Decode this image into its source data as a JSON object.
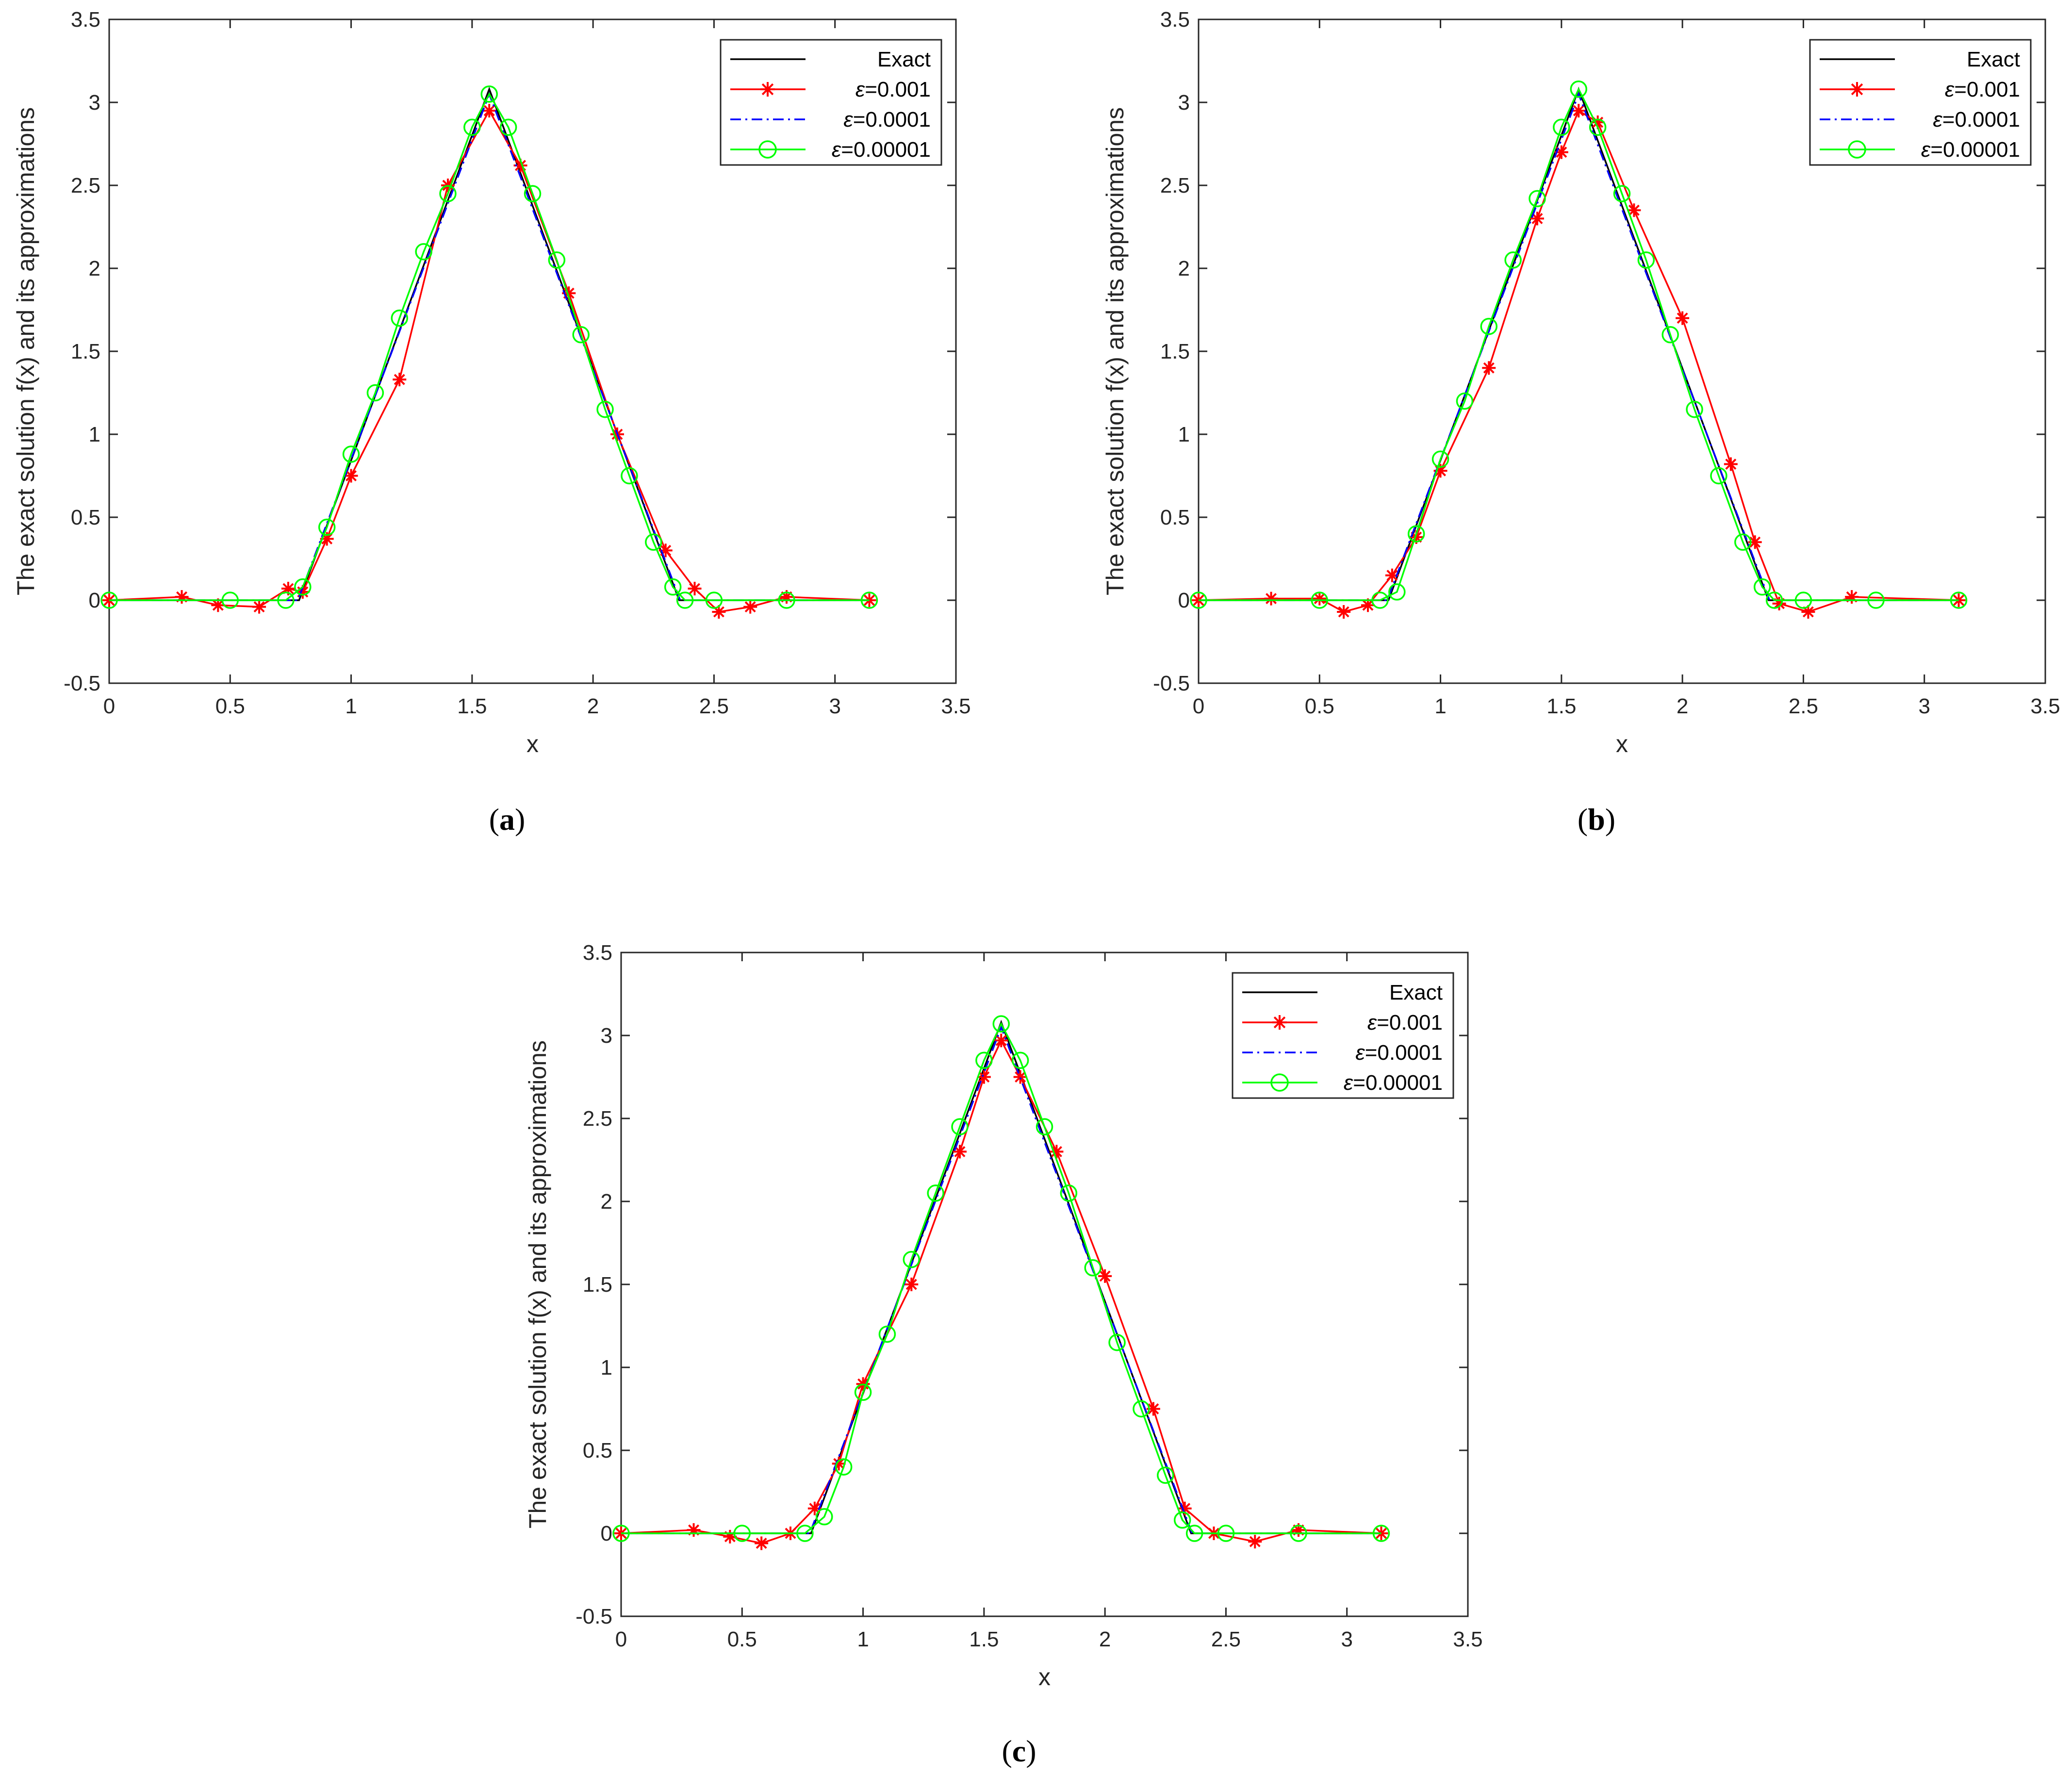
{
  "figure": {
    "colors": {
      "exact": "#000000",
      "eps1": "#ff0000",
      "eps2": "#0000ff",
      "eps3": "#00ff00",
      "axis": "#262626"
    }
  },
  "chart_data": [
    {
      "type": "line",
      "panel": "a",
      "caption": {
        "open": "(",
        "letter": "a",
        "close": ")"
      },
      "xlabel": "x",
      "ylabel": "The exact solution f(x) and its approximations",
      "xlim": [
        0,
        3.5
      ],
      "ylim": [
        -0.5,
        3.5
      ],
      "xticks": [
        "0",
        "0.5",
        "1",
        "1.5",
        "2",
        "2.5",
        "3",
        "3.5"
      ],
      "yticks": [
        "-0.5",
        "0",
        "0.5",
        "1",
        "1.5",
        "2",
        "2.5",
        "3",
        "3.5"
      ],
      "legend_position": "top-right",
      "series": [
        {
          "name": "Exact",
          "label_prefix": "",
          "label_value": "Exact",
          "style": "solid",
          "marker": "none",
          "color": "#000000",
          "x": [
            0,
            0.785,
            1.571,
            2.356,
            3.142
          ],
          "y": [
            0,
            0,
            3.08,
            0,
            0
          ]
        },
        {
          "name": "ε=0.001",
          "label_prefix": "ε",
          "label_value": "=0.001",
          "style": "solid",
          "marker": "star",
          "color": "#ff0000",
          "x": [
            0,
            0.3,
            0.45,
            0.62,
            0.74,
            0.8,
            0.9,
            1.0,
            1.2,
            1.4,
            1.571,
            1.7,
            1.9,
            2.1,
            2.3,
            2.42,
            2.52,
            2.65,
            2.8,
            3.142
          ],
          "y": [
            0,
            0.02,
            -0.03,
            -0.04,
            0.07,
            0.05,
            0.37,
            0.75,
            1.33,
            2.5,
            2.95,
            2.62,
            1.85,
            1.0,
            0.3,
            0.07,
            -0.07,
            -0.04,
            0.02,
            0
          ]
        },
        {
          "name": "ε=0.0001",
          "label_prefix": "ε",
          "label_value": "=0.0001",
          "style": "dashdot",
          "marker": "none",
          "color": "#0000ff",
          "x": [
            0,
            0.78,
            1.571,
            2.36,
            3.142
          ],
          "y": [
            0,
            0,
            3.05,
            0,
            0
          ]
        },
        {
          "name": "ε=0.00001",
          "label_prefix": "ε",
          "label_value": "=0.00001",
          "style": "solid",
          "marker": "circle",
          "color": "#00ff00",
          "x": [
            0,
            0.5,
            0.73,
            0.8,
            0.9,
            1.0,
            1.1,
            1.2,
            1.3,
            1.4,
            1.5,
            1.571,
            1.65,
            1.75,
            1.85,
            1.95,
            2.05,
            2.15,
            2.25,
            2.33,
            2.38,
            2.5,
            2.8,
            3.142
          ],
          "y": [
            0,
            0,
            0.0,
            0.08,
            0.44,
            0.88,
            1.25,
            1.7,
            2.1,
            2.45,
            2.85,
            3.05,
            2.85,
            2.45,
            2.05,
            1.6,
            1.15,
            0.75,
            0.35,
            0.08,
            0.0,
            0.0,
            0.0,
            0
          ]
        }
      ]
    },
    {
      "type": "line",
      "panel": "b",
      "caption": {
        "open": "(",
        "letter": "b",
        "close": ")"
      },
      "xlabel": "x",
      "ylabel": "The exact solution f(x) and its approximations",
      "xlim": [
        0,
        3.5
      ],
      "ylim": [
        -0.5,
        3.5
      ],
      "xticks": [
        "0",
        "0.5",
        "1",
        "1.5",
        "2",
        "2.5",
        "3",
        "3.5"
      ],
      "yticks": [
        "-0.5",
        "0",
        "0.5",
        "1",
        "1.5",
        "2",
        "2.5",
        "3",
        "3.5"
      ],
      "legend_position": "top-right",
      "series": [
        {
          "name": "Exact",
          "label_prefix": "",
          "label_value": "Exact",
          "style": "solid",
          "marker": "none",
          "color": "#000000",
          "x": [
            0,
            0.785,
            1.571,
            2.356,
            3.142
          ],
          "y": [
            0,
            0,
            3.08,
            0,
            0
          ]
        },
        {
          "name": "ε=0.001",
          "label_prefix": "ε",
          "label_value": "=0.001",
          "style": "solid",
          "marker": "star",
          "color": "#ff0000",
          "x": [
            0,
            0.3,
            0.5,
            0.6,
            0.7,
            0.8,
            0.9,
            1.0,
            1.2,
            1.4,
            1.5,
            1.571,
            1.65,
            1.8,
            2.0,
            2.2,
            2.3,
            2.4,
            2.52,
            2.7,
            3.142
          ],
          "y": [
            0,
            0.01,
            0.01,
            -0.07,
            -0.03,
            0.15,
            0.38,
            0.78,
            1.4,
            2.3,
            2.7,
            2.95,
            2.88,
            2.35,
            1.7,
            0.82,
            0.35,
            -0.02,
            -0.07,
            0.02,
            0
          ]
        },
        {
          "name": "ε=0.0001",
          "label_prefix": "ε",
          "label_value": "=0.0001",
          "style": "dashdot",
          "marker": "none",
          "color": "#0000ff",
          "x": [
            0,
            0.78,
            1.571,
            2.36,
            3.142
          ],
          "y": [
            0,
            0,
            3.05,
            0,
            0
          ]
        },
        {
          "name": "ε=0.00001",
          "label_prefix": "ε",
          "label_value": "=0.00001",
          "style": "solid",
          "marker": "circle",
          "color": "#00ff00",
          "x": [
            0,
            0.5,
            0.75,
            0.82,
            0.9,
            1.0,
            1.1,
            1.2,
            1.3,
            1.4,
            1.5,
            1.571,
            1.65,
            1.75,
            1.85,
            1.95,
            2.05,
            2.15,
            2.25,
            2.33,
            2.38,
            2.5,
            2.8,
            3.142
          ],
          "y": [
            0,
            0,
            0.0,
            0.05,
            0.4,
            0.85,
            1.2,
            1.65,
            2.05,
            2.42,
            2.85,
            3.08,
            2.85,
            2.45,
            2.05,
            1.6,
            1.15,
            0.75,
            0.35,
            0.08,
            0.0,
            0.0,
            0.0,
            0
          ]
        }
      ]
    },
    {
      "type": "line",
      "panel": "c",
      "caption": {
        "open": "(",
        "letter": "c",
        "close": ")"
      },
      "xlabel": "x",
      "ylabel": "The exact solution f(x) and its approximations",
      "xlim": [
        0,
        3.5
      ],
      "ylim": [
        -0.5,
        3.5
      ],
      "xticks": [
        "0",
        "0.5",
        "1",
        "1.5",
        "2",
        "2.5",
        "3",
        "3.5"
      ],
      "yticks": [
        "-0.5",
        "0",
        "0.5",
        "1",
        "1.5",
        "2",
        "2.5",
        "3",
        "3.5"
      ],
      "legend_position": "top-right",
      "series": [
        {
          "name": "Exact",
          "label_prefix": "",
          "label_value": "Exact",
          "style": "solid",
          "marker": "none",
          "color": "#000000",
          "x": [
            0,
            0.785,
            1.571,
            2.356,
            3.142
          ],
          "y": [
            0,
            0,
            3.08,
            0,
            0
          ]
        },
        {
          "name": "ε=0.001",
          "label_prefix": "ε",
          "label_value": "=0.001",
          "style": "solid",
          "marker": "star",
          "color": "#ff0000",
          "x": [
            0,
            0.3,
            0.45,
            0.58,
            0.7,
            0.8,
            0.9,
            1.0,
            1.2,
            1.4,
            1.5,
            1.571,
            1.65,
            1.8,
            2.0,
            2.2,
            2.33,
            2.45,
            2.62,
            2.8,
            3.142
          ],
          "y": [
            0,
            0.02,
            -0.02,
            -0.06,
            0.0,
            0.15,
            0.42,
            0.9,
            1.5,
            2.3,
            2.75,
            2.97,
            2.75,
            2.3,
            1.55,
            0.75,
            0.15,
            0.0,
            -0.05,
            0.02,
            0
          ]
        },
        {
          "name": "ε=0.0001",
          "label_prefix": "ε",
          "label_value": "=0.0001",
          "style": "dashdot",
          "marker": "none",
          "color": "#0000ff",
          "x": [
            0,
            0.78,
            1.571,
            2.36,
            3.142
          ],
          "y": [
            0,
            0,
            3.05,
            0,
            0
          ]
        },
        {
          "name": "ε=0.00001",
          "label_prefix": "ε",
          "label_value": "=0.00001",
          "style": "solid",
          "marker": "circle",
          "color": "#00ff00",
          "x": [
            0,
            0.5,
            0.76,
            0.84,
            0.92,
            1.0,
            1.1,
            1.2,
            1.3,
            1.4,
            1.5,
            1.571,
            1.65,
            1.75,
            1.85,
            1.95,
            2.05,
            2.15,
            2.25,
            2.32,
            2.37,
            2.5,
            2.8,
            3.142
          ],
          "y": [
            0,
            0,
            0.0,
            0.1,
            0.4,
            0.85,
            1.2,
            1.65,
            2.05,
            2.45,
            2.85,
            3.07,
            2.85,
            2.45,
            2.05,
            1.6,
            1.15,
            0.75,
            0.35,
            0.08,
            0.0,
            0.0,
            0.0,
            0
          ]
        }
      ]
    }
  ]
}
